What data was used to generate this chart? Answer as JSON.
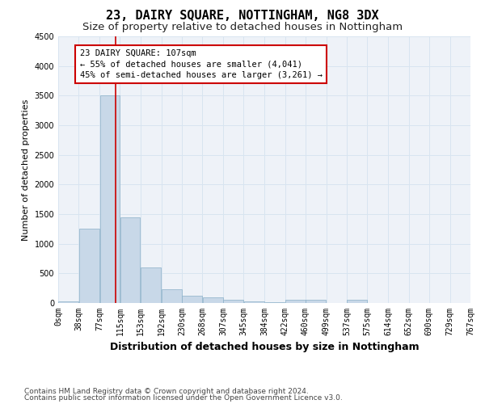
{
  "title": "23, DAIRY SQUARE, NOTTINGHAM, NG8 3DX",
  "subtitle": "Size of property relative to detached houses in Nottingham",
  "xlabel": "Distribution of detached houses by size in Nottingham",
  "ylabel": "Number of detached properties",
  "bin_edges": [
    0,
    38,
    77,
    115,
    153,
    192,
    230,
    268,
    307,
    345,
    384,
    422,
    460,
    499,
    537,
    575,
    614,
    652,
    690,
    729,
    767
  ],
  "bar_heights": [
    30,
    1250,
    3500,
    1450,
    600,
    230,
    120,
    100,
    60,
    30,
    15,
    50,
    50,
    0,
    50,
    0,
    0,
    0,
    0,
    0
  ],
  "bar_color": "#c8d8e8",
  "bar_edge_color": "#8ab0c8",
  "property_size": 107,
  "red_line_color": "#cc0000",
  "annotation_line1": "23 DAIRY SQUARE: 107sqm",
  "annotation_line2": "← 55% of detached houses are smaller (4,041)",
  "annotation_line3": "45% of semi-detached houses are larger (3,261) →",
  "annotation_box_color": "#ffffff",
  "annotation_box_edge_color": "#cc0000",
  "ylim": [
    0,
    4500
  ],
  "yticks": [
    0,
    500,
    1000,
    1500,
    2000,
    2500,
    3000,
    3500,
    4000,
    4500
  ],
  "grid_color": "#d8e4f0",
  "background_color": "#eef2f8",
  "footer_line1": "Contains HM Land Registry data © Crown copyright and database right 2024.",
  "footer_line2": "Contains public sector information licensed under the Open Government Licence v3.0.",
  "title_fontsize": 11,
  "subtitle_fontsize": 9.5,
  "xlabel_fontsize": 9,
  "ylabel_fontsize": 8,
  "tick_fontsize": 7,
  "footer_fontsize": 6.5,
  "annotation_fontsize": 7.5
}
